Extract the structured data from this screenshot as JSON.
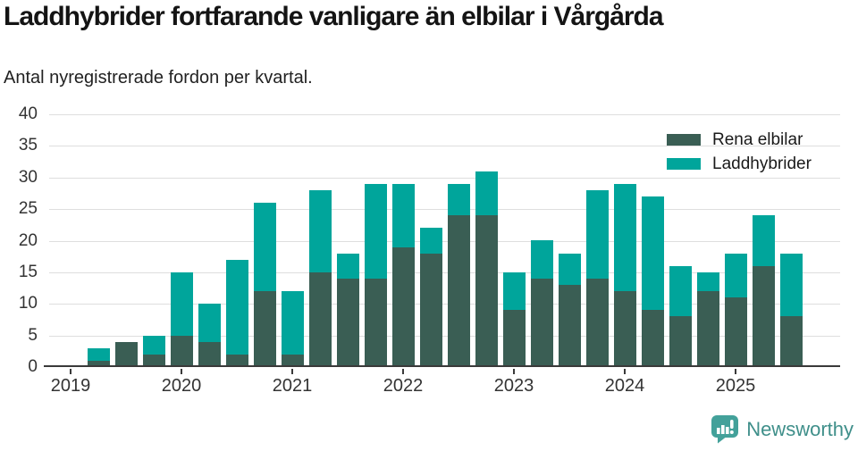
{
  "page": {
    "title": "Laddhybrider fortfarande vanligare än elbilar i Vårgårda",
    "subtitle": "Antal nyregistrerade fordon per kvartal."
  },
  "legend": {
    "items": [
      {
        "label": "Rena elbilar",
        "color_key": "electric"
      },
      {
        "label": "Laddhybrider",
        "color_key": "hybrid"
      }
    ]
  },
  "colors": {
    "electric": "#3a5e54",
    "hybrid": "#00a59b",
    "grid": "#dedede",
    "axis": "#3a3a3a",
    "text": "#1a1a1a",
    "brand": "#43a19a",
    "brand_text": "#3f8f8a"
  },
  "footer": {
    "brand_name": "Newsworthy",
    "logo_icon": "bar-chart-speech-bubble"
  },
  "chart_data": {
    "type": "bar",
    "stacked": true,
    "title": "Laddhybrider fortfarande vanligare än elbilar i Vårgårda",
    "subtitle": "Antal nyregistrerade fordon per kvartal.",
    "x": [
      "2019 Q1",
      "2019 Q2",
      "2019 Q3",
      "2019 Q4",
      "2020 Q1",
      "2020 Q2",
      "2020 Q3",
      "2020 Q4",
      "2021 Q1",
      "2021 Q2",
      "2021 Q3",
      "2021 Q4",
      "2022 Q1",
      "2022 Q2",
      "2022 Q3",
      "2022 Q4",
      "2023 Q1",
      "2023 Q2",
      "2023 Q3",
      "2023 Q4",
      "2024 Q1",
      "2024 Q2",
      "2024 Q3",
      "2024 Q4",
      "2025 Q1",
      "2025 Q2",
      "2025 Q3"
    ],
    "series": [
      {
        "name": "Rena elbilar",
        "values": [
          0,
          1,
          4,
          2,
          5,
          4,
          2,
          12,
          2,
          15,
          14,
          14,
          19,
          18,
          24,
          24,
          9,
          14,
          13,
          14,
          12,
          9,
          8,
          12,
          11,
          16,
          8
        ]
      },
      {
        "name": "Laddhybrider",
        "values": [
          0,
          2,
          0,
          3,
          10,
          6,
          15,
          14,
          10,
          13,
          4,
          15,
          10,
          4,
          5,
          7,
          6,
          6,
          5,
          14,
          17,
          18,
          8,
          3,
          7,
          8,
          10
        ]
      }
    ],
    "totals": [
      0,
      3,
      4,
      5,
      15,
      10,
      17,
      26,
      12,
      28,
      18,
      29,
      29,
      22,
      29,
      31,
      15,
      20,
      18,
      28,
      29,
      27,
      16,
      15,
      18,
      24,
      18
    ],
    "ylim": [
      0,
      40
    ],
    "yticks": [
      0,
      5,
      10,
      15,
      20,
      25,
      30,
      35,
      40
    ],
    "xtick_years": [
      "2019",
      "2020",
      "2021",
      "2022",
      "2023",
      "2024",
      "2025"
    ],
    "xtick_quarter_indices": [
      0,
      4,
      8,
      12,
      16,
      20,
      24
    ],
    "grid": "horizontal",
    "legend_position": "top-right"
  }
}
